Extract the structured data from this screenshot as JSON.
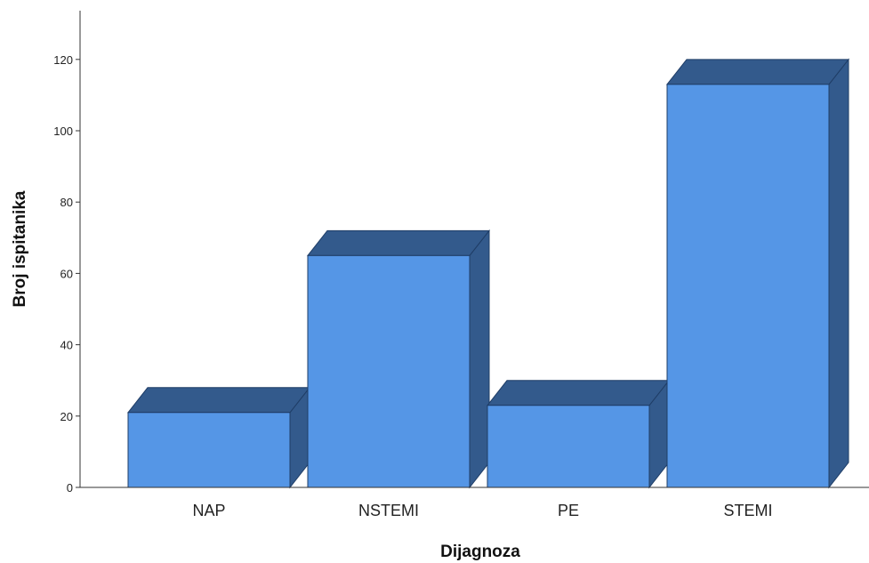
{
  "chart_data": {
    "type": "bar",
    "style": "3d",
    "categories": [
      "NAP",
      "NSTEMI",
      "PE",
      "STEMI"
    ],
    "values": [
      21,
      65,
      23,
      113
    ],
    "xlabel": "Dijagnoza",
    "ylabel": "Broj ispitanika",
    "ylim": [
      0,
      132
    ],
    "yticks": [
      0,
      20,
      40,
      60,
      80,
      100,
      120
    ],
    "grid": false,
    "legend": "none",
    "colors": {
      "bar_front": "#5596E6",
      "bar_side": "#335A8C",
      "bar_top": "#335A8C",
      "bar_edge": "#1F3D66",
      "axis": "#333333"
    }
  }
}
